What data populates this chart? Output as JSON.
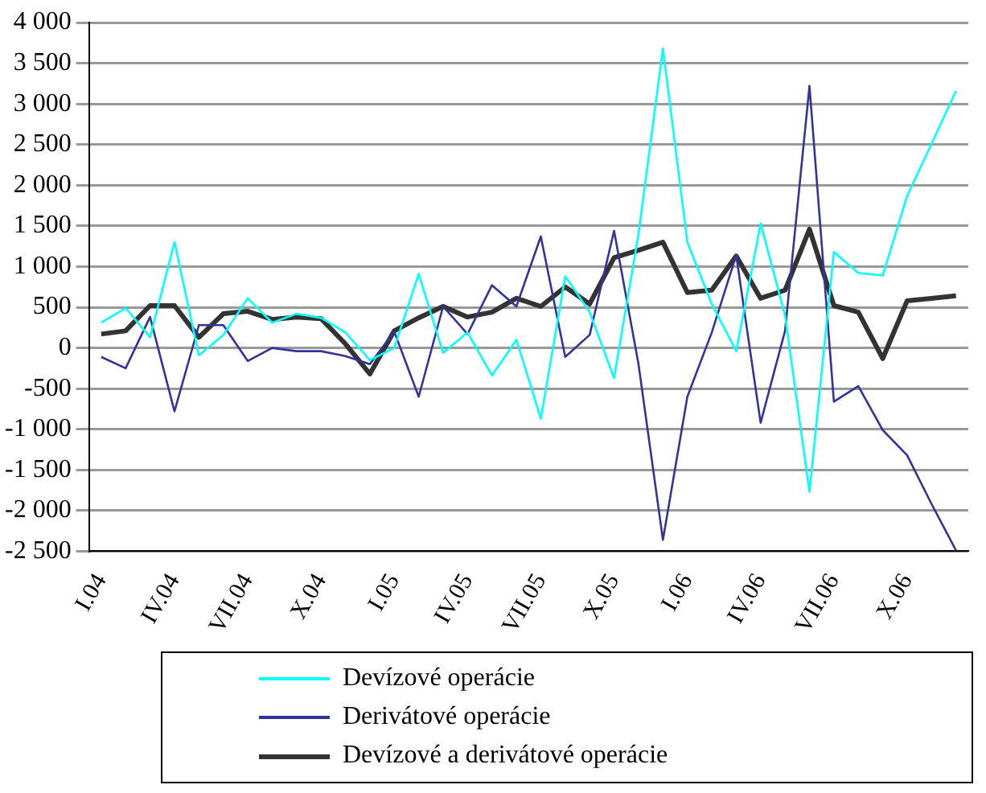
{
  "chart_data": {
    "type": "line",
    "categories": [
      "I.04",
      null,
      null,
      "IV.04",
      null,
      null,
      "VII.04",
      null,
      null,
      "X.04",
      null,
      null,
      "I.05",
      null,
      null,
      "IV.05",
      null,
      null,
      "VII.05",
      null,
      null,
      "X.05",
      null,
      null,
      "I.06",
      null,
      null,
      "IV.06",
      null,
      null,
      "VII.06",
      null,
      null,
      "X.06",
      null,
      null
    ],
    "series": [
      {
        "name": "Devízové operácie",
        "color": "#00ffff",
        "values": [
          310,
          490,
          130,
          1300,
          -90,
          160,
          610,
          310,
          420,
          370,
          190,
          -150,
          0,
          910,
          -60,
          190,
          -340,
          100,
          -870,
          880,
          440,
          -370,
          1400,
          3680,
          1300,
          540,
          -40,
          1530,
          400,
          -1770,
          1180,
          920,
          890,
          1870,
          2510,
          3160
        ]
      },
      {
        "name": "Derivátové operácie",
        "color": "#333399",
        "values": [
          -110,
          -250,
          380,
          -780,
          280,
          280,
          -160,
          0,
          -40,
          -40,
          -100,
          -200,
          200,
          -600,
          510,
          170,
          770,
          510,
          1370,
          -110,
          160,
          1440,
          -200,
          -2360,
          -600,
          190,
          1140,
          -920,
          210,
          3220,
          -660,
          -470,
          -1010,
          -1320,
          -1920,
          -2490
        ]
      },
      {
        "name": "Devízové a derivátové operácie",
        "color": "#333333",
        "values": [
          170,
          210,
          520,
          520,
          130,
          420,
          450,
          350,
          380,
          360,
          50,
          -320,
          210,
          370,
          510,
          380,
          440,
          610,
          510,
          750,
          540,
          1110,
          1200,
          1300,
          680,
          710,
          1130,
          610,
          710,
          1460,
          520,
          440,
          -130,
          580,
          610,
          640
        ]
      }
    ],
    "ylim": [
      -2500,
      4000
    ],
    "yticks": [
      {
        "value": -2500,
        "label": "-2 500"
      },
      {
        "value": -2000,
        "label": "-2 000"
      },
      {
        "value": -1500,
        "label": "-1 500"
      },
      {
        "value": -1000,
        "label": "-1 000"
      },
      {
        "value": -500,
        "label": "-500"
      },
      0,
      500,
      {
        "value": 1000,
        "label": "1 000"
      },
      {
        "value": 1500,
        "label": "1 500"
      },
      {
        "value": 2000,
        "label": "2 000"
      },
      {
        "value": 2500,
        "label": "2 500"
      },
      {
        "value": 3000,
        "label": "3 000"
      },
      {
        "value": 3500,
        "label": "3 500"
      },
      {
        "value": 4000,
        "label": "4 000"
      }
    ],
    "grid": "y",
    "legend": "bottom",
    "marker": "none",
    "line_style": "solid"
  }
}
